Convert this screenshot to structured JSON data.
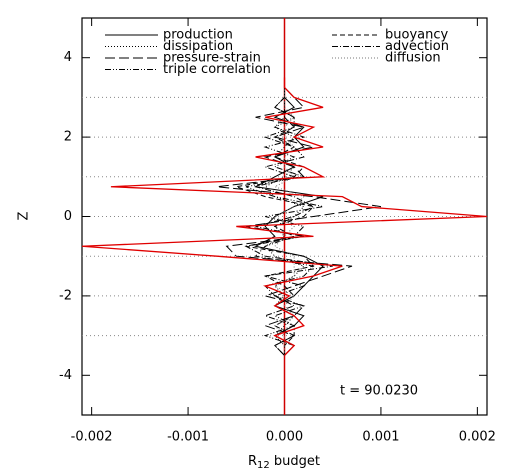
{
  "chart_data": {
    "type": "line",
    "orientation": "horizontal",
    "xlabel": [
      "R",
      "12",
      " budget"
    ],
    "ylabel": "Z",
    "annotation": "t = 90.0230",
    "xlim": [
      -0.0021,
      0.0021
    ],
    "ylim": [
      -5,
      5
    ],
    "xticks": [
      -0.002,
      -0.001,
      {
        "value": 0,
        "label": "0.000"
      },
      0.001,
      0.002
    ],
    "yticks": [
      -4,
      -2,
      0,
      2,
      4
    ],
    "gridlines": [
      -3,
      -2,
      -1,
      0,
      1,
      2,
      3
    ],
    "zero_line_color": "#d00000",
    "y": [
      -3.5,
      -3.25,
      -3,
      -2.75,
      -2.5,
      -2.25,
      -2,
      -1.75,
      -1.5,
      -1.25,
      -1,
      -0.75,
      -0.5,
      -0.25,
      0,
      0.25,
      0.5,
      0.75,
      1,
      1.25,
      1.5,
      1.75,
      2,
      2.25,
      2.5,
      2.75,
      3,
      3.25,
      3.5
    ],
    "series": [
      {
        "name": "production",
        "color": "#000000",
        "style": "solid",
        "legend_column": 0,
        "values": [
          0,
          0.0001,
          -0.0001,
          0.0001,
          0.0002,
          -0.0001,
          0.0001,
          0.0002,
          0.0003,
          0.0004,
          0.0002,
          -0.0003,
          -0.0001,
          -0.0002,
          -0.0001,
          0.0001,
          0.0004,
          -0.0003,
          -0.0001,
          0.0001,
          -0.0001,
          0.0002,
          0.0001,
          0.0002,
          -0.0001,
          0.0001,
          0,
          0,
          0
        ]
      },
      {
        "name": "dissipation",
        "color": "#000000",
        "style": "dotted",
        "legend_column": 0,
        "values": [
          0,
          0,
          -0.0001,
          0,
          0.0001,
          -0.0001,
          0,
          -0.0001,
          0.0001,
          0.0002,
          -0.0001,
          -0.0002,
          0,
          -0.0001,
          0.0001,
          0.0002,
          -0.0001,
          -0.0002,
          0,
          0.0001,
          -0.0001,
          0,
          0.0001,
          -0.0001,
          0,
          0,
          0,
          0,
          0
        ]
      },
      {
        "name": "pressure-strain",
        "color": "#000000",
        "style": "long-dash",
        "legend_column": 0,
        "values": [
          0,
          -0.0001,
          0.0001,
          -0.0002,
          0.0001,
          0.0002,
          -0.0002,
          0.0001,
          0.0004,
          0.0007,
          -0.0005,
          -0.0006,
          0.0002,
          -0.0004,
          0.0003,
          0.001,
          0.0003,
          -0.0007,
          0.0002,
          0.0001,
          -0.0002,
          0.0003,
          -0.0001,
          0.0002,
          -0.0003,
          0.0002,
          0.0001,
          0,
          0
        ]
      },
      {
        "name": "triple correlation",
        "color": "#000000",
        "style": "dash-dot-dot",
        "legend_column": 0,
        "values": [
          0,
          0.0001,
          -0.0002,
          0.0001,
          -0.0001,
          0.0002,
          -0.0001,
          -0.0002,
          0.0002,
          0.0003,
          -0.0003,
          -0.0002,
          0.0001,
          0.0002,
          -0.0002,
          0.0004,
          -0.0001,
          -0.0004,
          0.0002,
          -0.0001,
          0.0001,
          -0.0002,
          0.0002,
          -0.0001,
          0.0001,
          -0.0001,
          0,
          0,
          0
        ]
      },
      {
        "name": "buoyancy",
        "color": "#000000",
        "style": "dashed",
        "legend_column": 1,
        "values": [
          0,
          0,
          0.0001,
          -0.0001,
          0.0001,
          -0.0001,
          0.0001,
          0,
          -0.0002,
          0.0003,
          0.0002,
          -0.0004,
          0.0001,
          -0.0001,
          0.0002,
          0.0003,
          -0.0002,
          -0.0005,
          0.0001,
          0.0002,
          -0.0001,
          0.0001,
          -0.0001,
          0.0001,
          0,
          0,
          0,
          0,
          0
        ]
      },
      {
        "name": "advection",
        "color": "#000000",
        "style": "dash-dot",
        "legend_column": 1,
        "values": [
          0,
          -0.0001,
          0.0001,
          0.0001,
          -0.0002,
          0.0001,
          -0.0001,
          0.0002,
          -0.0002,
          0.0005,
          -0.0002,
          -0.0004,
          0.0002,
          -0.0003,
          0.0001,
          0.0003,
          0.0001,
          -0.0003,
          0.0001,
          -0.0002,
          0.0002,
          0.0001,
          -0.0002,
          0.0001,
          0.0001,
          -0.0001,
          0,
          0,
          0
        ]
      },
      {
        "name": "diffusion",
        "color": "#777777",
        "style": "dotted",
        "legend_column": 1,
        "values": [
          0,
          0,
          0,
          -0.0001,
          0.0001,
          0,
          0.0001,
          -0.0001,
          0.0001,
          0.0001,
          0.0001,
          -0.0001,
          0,
          0.0001,
          -0.0001,
          0.0001,
          0.0002,
          -0.0001,
          0.0001,
          0,
          0,
          0.0001,
          0,
          0,
          0.0001,
          0,
          0,
          0,
          0
        ]
      },
      {
        "color": "#e00000",
        "style": "solid",
        "values": [
          0,
          0.0001,
          -0.0001,
          0.0002,
          0.0001,
          -0.0001,
          5e-05,
          -0.0002,
          0.0003,
          0.0006,
          -0.0007,
          -0.0021,
          0.0003,
          -0.0005,
          0.0021,
          0.0008,
          0.0006,
          -0.0018,
          0.0004,
          0.0002,
          -0.0003,
          0.0004,
          0.0001,
          0.0003,
          -0.0002,
          0.0004,
          0.0001,
          0,
          0
        ]
      }
    ]
  }
}
